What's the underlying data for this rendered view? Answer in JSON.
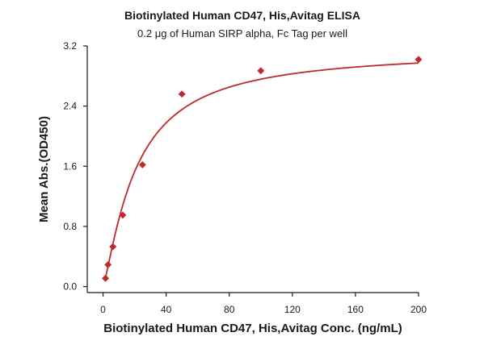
{
  "chart_data": {
    "type": "scatter",
    "title": "Biotinylated Human CD47, His,Avitag ELISA",
    "subtitle": "0.2 μg of Human SIRP alpha, Fc Tag per well",
    "xlabel": "Biotinylated Human CD47, His,Avitag Conc. (ng/mL)",
    "ylabel": "Mean Abs.(OD450)",
    "xlim": [
      -10,
      200
    ],
    "ylim": [
      -0.08,
      3.2
    ],
    "xticks": [
      0,
      40,
      80,
      120,
      160,
      200
    ],
    "yticks": [
      0.0,
      0.8,
      1.6,
      2.4,
      3.2
    ],
    "xtick_labels": [
      "0",
      "40",
      "80",
      "120",
      "160",
      "200"
    ],
    "ytick_labels": [
      "0.0",
      "0.8",
      "1.6",
      "2.4",
      "3.2"
    ],
    "grid": false,
    "legend": "none",
    "series": [
      {
        "marker": "diamond",
        "color": "#c0282e",
        "x": [
          1.56,
          3.13,
          6.25,
          12.5,
          25,
          50,
          100,
          200
        ],
        "y": [
          0.11,
          0.29,
          0.53,
          0.95,
          1.62,
          2.56,
          2.87,
          3.02
        ]
      }
    ],
    "fit_curve": {
      "color": "#c0282e",
      "model": "four-parameter logistic",
      "bottom": 0.0,
      "top": 3.15,
      "ec50": 21.0,
      "hill": 1.25
    }
  }
}
